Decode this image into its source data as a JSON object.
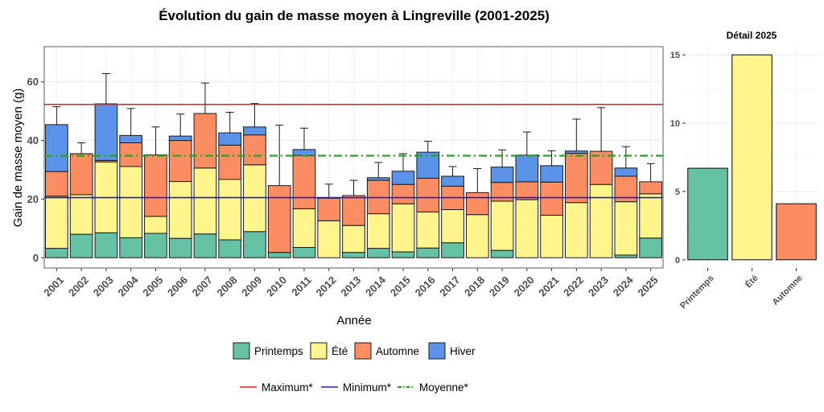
{
  "chart_data": [
    {
      "type": "bar",
      "stacked": true,
      "title": "Évolution du gain de masse moyen à Lingreville (2001-2025)",
      "xlabel": "Année",
      "ylabel": "Gain de masse moyen (g)",
      "ylim": [
        -3.5,
        72
      ],
      "yticks": [
        0,
        20,
        40,
        60
      ],
      "grid": true,
      "categories": [
        "2001",
        "2002",
        "2003",
        "2004",
        "2005",
        "2006",
        "2007",
        "2008",
        "2009",
        "2010",
        "2011",
        "2012",
        "2013",
        "2014",
        "2015",
        "2016",
        "2017",
        "2018",
        "2019",
        "2020",
        "2021",
        "2022",
        "2023",
        "2024",
        "2025"
      ],
      "series": [
        {
          "name": "Printemps",
          "color": "#66c2a5",
          "values": [
            3.2,
            8,
            8.5,
            6.8,
            8.3,
            6.6,
            8.1,
            6.1,
            8.9,
            1.8,
            3.5,
            0,
            1.8,
            3.2,
            2,
            3.3,
            5.1,
            0,
            2.5,
            0,
            0,
            0,
            0,
            0.9,
            6.7
          ]
        },
        {
          "name": "Été",
          "color": "#fff58c",
          "values": [
            17.8,
            13.5,
            24.2,
            24.3,
            5.8,
            19.4,
            22.5,
            20.6,
            22.8,
            0,
            13.2,
            12.6,
            9.2,
            11.8,
            16.4,
            12.3,
            11.3,
            14.7,
            16.8,
            19.8,
            14.5,
            18.8,
            25,
            18.2,
            15.1
          ]
        },
        {
          "name": "Automne",
          "color": "#fc8d62",
          "values": [
            8.4,
            14,
            0.5,
            8.1,
            21,
            14,
            18.6,
            11.7,
            10.2,
            22.8,
            18.2,
            7.7,
            10.2,
            11.4,
            6.6,
            11.5,
            8,
            7.5,
            6.4,
            6.1,
            11.3,
            16.8,
            11.3,
            8.7,
            4.1
          ]
        },
        {
          "name": "Hiver",
          "color": "#5b93e8",
          "values": [
            16,
            0,
            19.3,
            2.5,
            0,
            1.5,
            0,
            4.2,
            2.7,
            0,
            2,
            0,
            0,
            0.9,
            4.5,
            8.9,
            3.4,
            0,
            5.2,
            9.1,
            5.6,
            0.8,
            0,
            2.8,
            0
          ]
        }
      ],
      "error_bar_tops": [
        51.5,
        39.2,
        62.8,
        50.9,
        44.6,
        49,
        59.6,
        49.6,
        52.6,
        45.2,
        44.2,
        25.1,
        26.4,
        32.5,
        35.5,
        39.7,
        31.1,
        30.4,
        36.8,
        42.9,
        36.5,
        47.3,
        51.2,
        37.9,
        32.1
      ],
      "reference_lines": [
        {
          "name": "Maximum*",
          "value": 52.3,
          "color": "#e41a1c",
          "style": "solid"
        },
        {
          "name": "Minimum*",
          "value": 20.5,
          "color": "#1f1fc8",
          "style": "solid"
        },
        {
          "name": "Moyenne*",
          "value": 34.8,
          "color": "#2ca02c",
          "style": "dashdot"
        }
      ],
      "legend_position": "bottom"
    },
    {
      "type": "bar",
      "title": "Détail 2025",
      "categories": [
        "Printemps",
        "Été",
        "Automne"
      ],
      "values": [
        6.7,
        15,
        4.1
      ],
      "colors": [
        "#66c2a5",
        "#fff58c",
        "#fc8d62"
      ],
      "ylim": [
        -0.6,
        15.6
      ],
      "yticks": [
        0,
        5,
        10,
        15
      ],
      "grid": true
    }
  ]
}
